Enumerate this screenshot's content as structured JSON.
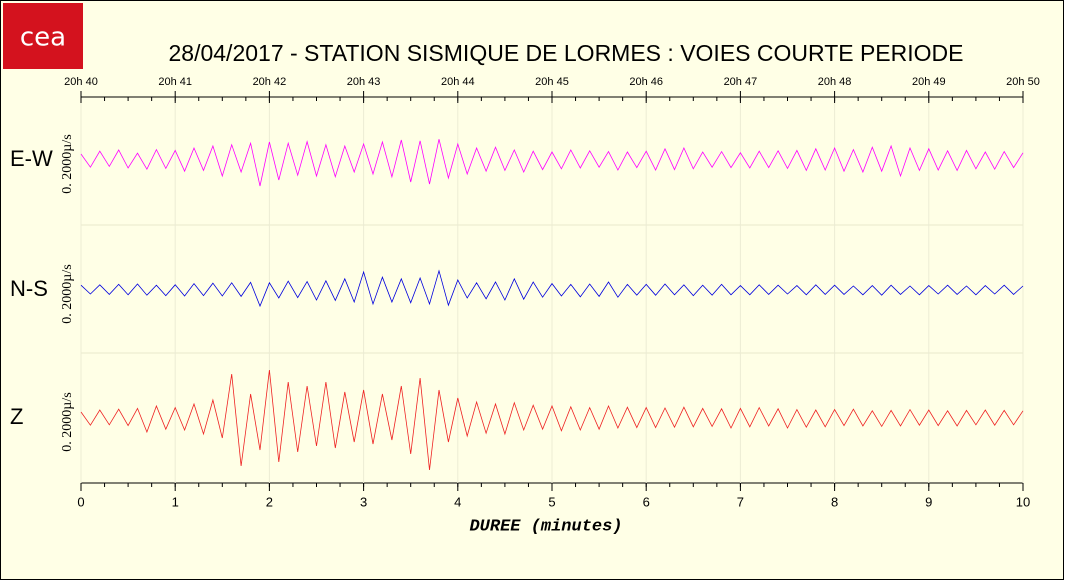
{
  "logo": "cea",
  "chart_data": {
    "type": "seismogram",
    "title": "28/04/2017  -  STATION SISMIQUE DE LORMES : VOIES COURTE PERIODE",
    "xlabel": "DUREE (minutes)",
    "xlim": [
      0,
      10
    ],
    "xticks": [
      0,
      1,
      2,
      3,
      4,
      5,
      6,
      7,
      8,
      9,
      10
    ],
    "xticks_top": [
      {
        "value": 0,
        "label": "20h 40"
      },
      {
        "value": 1,
        "label": "20h 41"
      },
      {
        "value": 2,
        "label": "20h 42"
      },
      {
        "value": 3,
        "label": "20h 43"
      },
      {
        "value": 4,
        "label": "20h 44"
      },
      {
        "value": 5,
        "label": "20h 45"
      },
      {
        "value": 6,
        "label": "20h 46"
      },
      {
        "value": 7,
        "label": "20h 47"
      },
      {
        "value": 8,
        "label": "20h 48"
      },
      {
        "value": 9,
        "label": "20h 49"
      },
      {
        "value": 10,
        "label": "20h 50"
      }
    ],
    "grid": true,
    "x": [
      0,
      0.1,
      0.2,
      0.3,
      0.4,
      0.5,
      0.6,
      0.7,
      0.8,
      0.9,
      1,
      1.1,
      1.2,
      1.3,
      1.4,
      1.5,
      1.6,
      1.7,
      1.8,
      1.9,
      2,
      2.1,
      2.2,
      2.3,
      2.4,
      2.5,
      2.6,
      2.7,
      2.8,
      2.9,
      3,
      3.1,
      3.2,
      3.3,
      3.4,
      3.5,
      3.6,
      3.7,
      3.8,
      3.9,
      4,
      4.1,
      4.2,
      4.3,
      4.4,
      4.5,
      4.6,
      4.7,
      4.8,
      4.9,
      5,
      5.1,
      5.2,
      5.3,
      5.4,
      5.5,
      5.6,
      5.7,
      5.8,
      5.9,
      6,
      6.1,
      6.2,
      6.3,
      6.4,
      6.5,
      6.6,
      6.7,
      6.8,
      6.9,
      7,
      7.1,
      7.2,
      7.3,
      7.4,
      7.5,
      7.6,
      7.7,
      7.8,
      7.9,
      8,
      8.1,
      8.2,
      8.3,
      8.4,
      8.5,
      8.6,
      8.7,
      8.8,
      8.9,
      9,
      9.1,
      9.2,
      9.3,
      9.4,
      9.5,
      9.6,
      9.7,
      9.8,
      9.9,
      10
    ],
    "series": [
      {
        "name": "E-W",
        "color": "#ff00ff",
        "scale_label": "0. 2000µ/s",
        "ylim": [
          -2000,
          2000
        ],
        "values": [
          150,
          -180,
          220,
          -160,
          250,
          -200,
          170,
          -230,
          260,
          -210,
          240,
          -280,
          300,
          -260,
          350,
          -400,
          380,
          -300,
          420,
          -650,
          450,
          -500,
          420,
          -380,
          460,
          -400,
          380,
          -420,
          350,
          -300,
          400,
          -350,
          450,
          -420,
          500,
          -550,
          480,
          -600,
          520,
          -450,
          400,
          -350,
          300,
          -280,
          320,
          -260,
          250,
          -300,
          220,
          -240,
          200,
          -220,
          250,
          -200,
          230,
          -180,
          210,
          -250,
          200,
          -190,
          220,
          -250,
          280,
          -240,
          300,
          -220,
          200,
          -180,
          210,
          -190,
          180,
          -200,
          220,
          -190,
          230,
          -210,
          240,
          -260,
          280,
          -250,
          300,
          -280,
          260,
          -300,
          320,
          -280,
          350,
          -400,
          300,
          -260,
          280,
          -250,
          230,
          -260,
          240,
          -220,
          200,
          -230,
          210,
          -190,
          180
        ]
      },
      {
        "name": "N-S",
        "color": "#0000dd",
        "scale_label": "0. 2000µ/s",
        "ylim": [
          -2000,
          2000
        ],
        "values": [
          120,
          -100,
          130,
          -110,
          140,
          -120,
          150,
          -130,
          120,
          -140,
          130,
          -150,
          160,
          -140,
          170,
          -150,
          180,
          -160,
          190,
          -400,
          180,
          -200,
          220,
          -190,
          210,
          -250,
          230,
          -260,
          280,
          -300,
          450,
          -350,
          320,
          -300,
          280,
          -320,
          300,
          -350,
          480,
          -380,
          250,
          -200,
          180,
          -220,
          200,
          -250,
          280,
          -230,
          200,
          -180,
          160,
          -150,
          140,
          -170,
          150,
          -160,
          200,
          -180,
          140,
          -130,
          140,
          -130,
          150,
          -120,
          130,
          -140,
          120,
          -130,
          140,
          -120,
          110,
          -120,
          130,
          -110,
          120,
          -100,
          110,
          -120,
          130,
          -110,
          120,
          -110,
          100,
          -120,
          110,
          -130,
          120,
          -110,
          100,
          -120,
          110,
          -100,
          120,
          -110,
          100,
          -120,
          110,
          -100,
          120,
          -110,
          100
        ]
      },
      {
        "name": "Z",
        "color": "#ee2222",
        "scale_label": "0. 2000µ/s",
        "ylim": [
          -2000,
          2000
        ],
        "values": [
          150,
          -180,
          200,
          -170,
          220,
          -190,
          240,
          -350,
          300,
          -280,
          260,
          -300,
          350,
          -400,
          450,
          -500,
          1100,
          -1200,
          600,
          -800,
          1200,
          -1100,
          900,
          -850,
          800,
          -700,
          900,
          -750,
          650,
          -600,
          700,
          -650,
          600,
          -550,
          800,
          -900,
          1000,
          -1300,
          700,
          -600,
          500,
          -450,
          400,
          -380,
          350,
          -400,
          380,
          -300,
          320,
          -280,
          300,
          -320,
          280,
          -300,
          260,
          -280,
          300,
          -250,
          270,
          -240,
          260,
          -240,
          250,
          -230,
          270,
          -220,
          240,
          -210,
          230,
          -250,
          240,
          -220,
          260,
          -200,
          230,
          -250,
          210,
          -230,
          200,
          -220,
          210,
          -190,
          220,
          -200,
          180,
          -210,
          190,
          -200,
          210,
          -180,
          200,
          -190,
          180,
          -200,
          190,
          -170,
          200,
          -180,
          190,
          -170,
          180
        ]
      }
    ]
  }
}
